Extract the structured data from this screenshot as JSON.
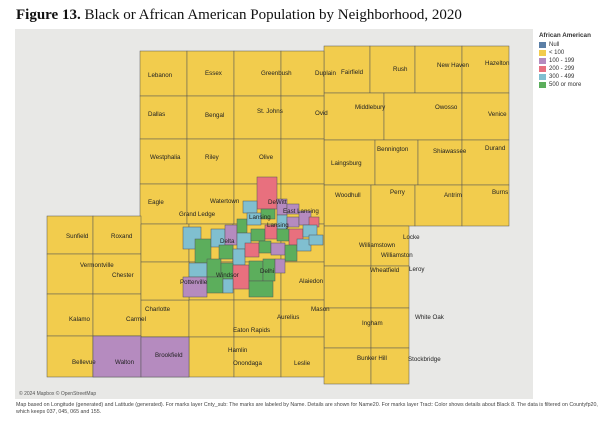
{
  "figure": {
    "label": "Figure 13.",
    "title": " Black or African American Population by Neighborhood, 2020"
  },
  "legend": {
    "title": "African American",
    "items": [
      {
        "label": "Null",
        "color": "#5b7fa6"
      },
      {
        "label": "< 100",
        "color": "#f2cc4d"
      },
      {
        "label": "100 - 199",
        "color": "#b58bbf"
      },
      {
        "label": "200 - 299",
        "color": "#e8707e"
      },
      {
        "label": "300 - 499",
        "color": "#80bfd0"
      },
      {
        "label": "500 or more",
        "color": "#5cae5c"
      }
    ]
  },
  "map": {
    "attribution": "© 2024 Mapbox © OpenStreetMap",
    "subdivisions": [
      "Lebanon",
      "Essex",
      "Greenbush",
      "Duplain",
      "Fairfield",
      "Rush",
      "New Haven",
      "Hazelton",
      "Dallas",
      "Bengal",
      "St. Johns",
      "Ovid",
      "Middlebury",
      "Owosso",
      "Venice",
      "Westphalia",
      "Riley",
      "Olive",
      "Laingsburg",
      "Bennington",
      "Shiawassee",
      "Durand",
      "Eagle",
      "Watertown",
      "DeWitt",
      "Woodhull",
      "Perry",
      "Antrim",
      "Burns",
      "Grand Ledge",
      "East Lansing",
      "Lansing",
      "Sunfield",
      "Roxand",
      "Delta",
      "Lansing",
      "Williamstown",
      "Locke",
      "Vermontville",
      "Chester",
      "Williamston",
      "Potterville",
      "Windsor",
      "Wheatfield",
      "Leroy",
      "Delhi",
      "Alaiedon",
      "Kalamo",
      "Charlotte",
      "Carmel",
      "Mason",
      "Ingham",
      "White Oak",
      "Eaton Rapids",
      "Aurelius",
      "Hamlin",
      "Bellevue",
      "Walton",
      "Brookfield",
      "Onondaga",
      "Leslie",
      "Bunker Hill",
      "Stockbridge"
    ]
  },
  "footnote": "Map based on Longitude (generated) and Latitude (generated).  For marks layer Cnty_sub: The marks are labeled by Name. Details are shown for Name20. For marks layer Tract: Color shows details about Black 8. The data is filtered on Countyfp20, which keeps 037, 045, 065 and 155."
}
